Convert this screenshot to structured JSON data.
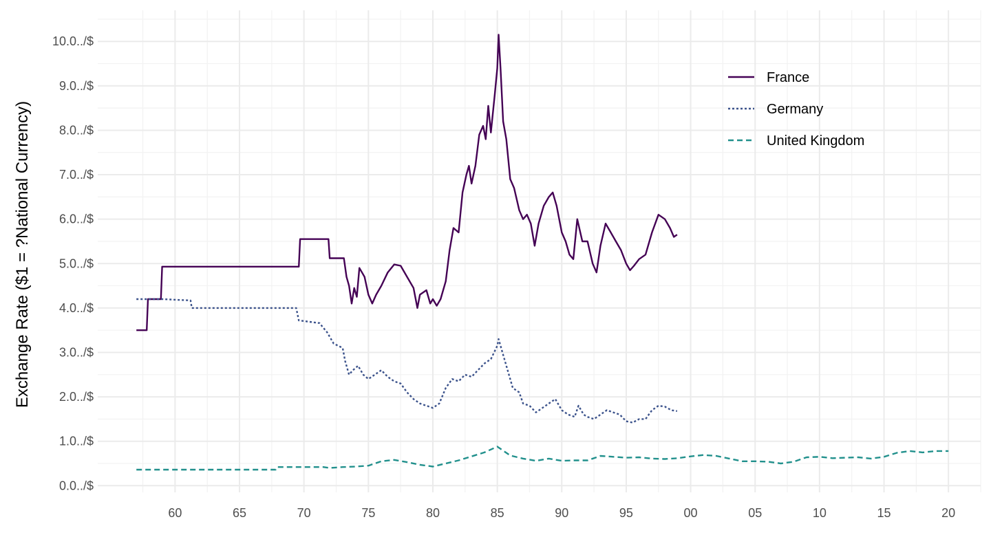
{
  "chart_data": {
    "type": "line",
    "title": "",
    "xlabel": "",
    "ylabel": "Exchange Rate ($1 = ?National Currency)",
    "xlim": [
      1954,
      2022.5
    ],
    "ylim": [
      -0.15,
      10.7
    ],
    "x_ticks": [
      {
        "value": 1960,
        "label": "60"
      },
      {
        "value": 1965,
        "label": "65"
      },
      {
        "value": 1970,
        "label": "70"
      },
      {
        "value": 1975,
        "label": "75"
      },
      {
        "value": 1980,
        "label": "80"
      },
      {
        "value": 1985,
        "label": "85"
      },
      {
        "value": 1990,
        "label": "90"
      },
      {
        "value": 1995,
        "label": "95"
      },
      {
        "value": 2000,
        "label": "00"
      },
      {
        "value": 2005,
        "label": "05"
      },
      {
        "value": 2010,
        "label": "10"
      },
      {
        "value": 2015,
        "label": "15"
      },
      {
        "value": 2020,
        "label": "20"
      }
    ],
    "y_ticks": [
      {
        "value": 0,
        "label": "0.0../$"
      },
      {
        "value": 1,
        "label": "1.0../$"
      },
      {
        "value": 2,
        "label": "2.0../$"
      },
      {
        "value": 3,
        "label": "3.0../$"
      },
      {
        "value": 4,
        "label": "4.0../$"
      },
      {
        "value": 5,
        "label": "5.0../$"
      },
      {
        "value": 6,
        "label": "6.0../$"
      },
      {
        "value": 7,
        "label": "7.0../$"
      },
      {
        "value": 8,
        "label": "8.0../$"
      },
      {
        "value": 9,
        "label": "9.0../$"
      },
      {
        "value": 10,
        "label": "10.0../$"
      }
    ],
    "grid": true,
    "legend_position": "top-right",
    "series": [
      {
        "name": "France",
        "color": "#440154",
        "dash": "solid",
        "points": [
          [
            1957,
            3.5
          ],
          [
            1957.8,
            3.5
          ],
          [
            1957.9,
            4.2
          ],
          [
            1958.9,
            4.2
          ],
          [
            1959,
            4.93
          ],
          [
            1969.6,
            4.93
          ],
          [
            1969.7,
            5.55
          ],
          [
            1971.9,
            5.55
          ],
          [
            1972,
            5.12
          ],
          [
            1973.1,
            5.12
          ],
          [
            1973.3,
            4.7
          ],
          [
            1973.5,
            4.5
          ],
          [
            1973.7,
            4.1
          ],
          [
            1973.9,
            4.45
          ],
          [
            1974.1,
            4.25
          ],
          [
            1974.3,
            4.9
          ],
          [
            1974.5,
            4.8
          ],
          [
            1974.7,
            4.7
          ],
          [
            1975,
            4.3
          ],
          [
            1975.3,
            4.1
          ],
          [
            1975.6,
            4.3
          ],
          [
            1976,
            4.5
          ],
          [
            1976.5,
            4.8
          ],
          [
            1977,
            4.98
          ],
          [
            1977.5,
            4.95
          ],
          [
            1978,
            4.7
          ],
          [
            1978.5,
            4.45
          ],
          [
            1978.8,
            4.0
          ],
          [
            1979,
            4.3
          ],
          [
            1979.5,
            4.4
          ],
          [
            1979.8,
            4.1
          ],
          [
            1980,
            4.2
          ],
          [
            1980.3,
            4.05
          ],
          [
            1980.6,
            4.2
          ],
          [
            1981,
            4.6
          ],
          [
            1981.3,
            5.3
          ],
          [
            1981.6,
            5.8
          ],
          [
            1982,
            5.7
          ],
          [
            1982.3,
            6.6
          ],
          [
            1982.6,
            7.0
          ],
          [
            1982.8,
            7.2
          ],
          [
            1983,
            6.8
          ],
          [
            1983.3,
            7.2
          ],
          [
            1983.6,
            7.9
          ],
          [
            1983.9,
            8.1
          ],
          [
            1984.1,
            7.8
          ],
          [
            1984.3,
            8.55
          ],
          [
            1984.5,
            7.95
          ],
          [
            1984.8,
            8.8
          ],
          [
            1985.0,
            9.4
          ],
          [
            1985.1,
            10.15
          ],
          [
            1985.25,
            9.4
          ],
          [
            1985.45,
            8.2
          ],
          [
            1985.7,
            7.8
          ],
          [
            1986.0,
            6.9
          ],
          [
            1986.3,
            6.7
          ],
          [
            1986.7,
            6.2
          ],
          [
            1987.0,
            6.0
          ],
          [
            1987.3,
            6.1
          ],
          [
            1987.6,
            5.9
          ],
          [
            1987.9,
            5.4
          ],
          [
            1988.2,
            5.9
          ],
          [
            1988.6,
            6.3
          ],
          [
            1989,
            6.5
          ],
          [
            1989.3,
            6.6
          ],
          [
            1989.6,
            6.3
          ],
          [
            1990,
            5.7
          ],
          [
            1990.3,
            5.5
          ],
          [
            1990.6,
            5.2
          ],
          [
            1990.9,
            5.1
          ],
          [
            1991.2,
            6.0
          ],
          [
            1991.6,
            5.5
          ],
          [
            1992,
            5.5
          ],
          [
            1992.4,
            5.0
          ],
          [
            1992.7,
            4.8
          ],
          [
            1993,
            5.4
          ],
          [
            1993.4,
            5.9
          ],
          [
            1993.8,
            5.7
          ],
          [
            1994.2,
            5.5
          ],
          [
            1994.6,
            5.3
          ],
          [
            1995,
            5.0
          ],
          [
            1995.3,
            4.85
          ],
          [
            1995.6,
            4.95
          ],
          [
            1996,
            5.1
          ],
          [
            1996.5,
            5.2
          ],
          [
            1997,
            5.7
          ],
          [
            1997.5,
            6.1
          ],
          [
            1998,
            6.0
          ],
          [
            1998.4,
            5.8
          ],
          [
            1998.7,
            5.6
          ],
          [
            1998.95,
            5.65
          ]
        ]
      },
      {
        "name": "Germany",
        "color": "#3b528b",
        "dash": "dotted",
        "points": [
          [
            1957,
            4.2
          ],
          [
            1959,
            4.2
          ],
          [
            1961.2,
            4.17
          ],
          [
            1961.3,
            4.0
          ],
          [
            1967.5,
            4.0
          ],
          [
            1969.4,
            4.0
          ],
          [
            1969.6,
            3.72
          ],
          [
            1971.2,
            3.66
          ],
          [
            1971.8,
            3.45
          ],
          [
            1972.3,
            3.2
          ],
          [
            1973,
            3.1
          ],
          [
            1973.2,
            2.8
          ],
          [
            1973.5,
            2.5
          ],
          [
            1973.8,
            2.6
          ],
          [
            1974.2,
            2.7
          ],
          [
            1974.6,
            2.5
          ],
          [
            1975,
            2.4
          ],
          [
            1975.5,
            2.5
          ],
          [
            1976,
            2.6
          ],
          [
            1976.5,
            2.45
          ],
          [
            1977,
            2.35
          ],
          [
            1977.5,
            2.3
          ],
          [
            1978,
            2.1
          ],
          [
            1978.5,
            1.95
          ],
          [
            1979,
            1.85
          ],
          [
            1979.5,
            1.8
          ],
          [
            1980,
            1.75
          ],
          [
            1980.5,
            1.85
          ],
          [
            1981,
            2.2
          ],
          [
            1981.5,
            2.4
          ],
          [
            1982,
            2.35
          ],
          [
            1982.5,
            2.5
          ],
          [
            1983,
            2.45
          ],
          [
            1983.5,
            2.6
          ],
          [
            1984,
            2.75
          ],
          [
            1984.5,
            2.85
          ],
          [
            1985.0,
            3.15
          ],
          [
            1985.1,
            3.3
          ],
          [
            1985.4,
            3.0
          ],
          [
            1985.8,
            2.6
          ],
          [
            1986.2,
            2.2
          ],
          [
            1986.7,
            2.1
          ],
          [
            1987,
            1.85
          ],
          [
            1987.5,
            1.8
          ],
          [
            1988,
            1.65
          ],
          [
            1988.5,
            1.75
          ],
          [
            1989,
            1.85
          ],
          [
            1989.5,
            1.95
          ],
          [
            1990,
            1.7
          ],
          [
            1990.5,
            1.6
          ],
          [
            1991,
            1.55
          ],
          [
            1991.3,
            1.8
          ],
          [
            1991.7,
            1.6
          ],
          [
            1992,
            1.55
          ],
          [
            1992.5,
            1.5
          ],
          [
            1993,
            1.6
          ],
          [
            1993.5,
            1.7
          ],
          [
            1994,
            1.65
          ],
          [
            1994.5,
            1.6
          ],
          [
            1995,
            1.45
          ],
          [
            1995.5,
            1.42
          ],
          [
            1996,
            1.5
          ],
          [
            1996.5,
            1.5
          ],
          [
            1997,
            1.7
          ],
          [
            1997.5,
            1.8
          ],
          [
            1998,
            1.78
          ],
          [
            1998.5,
            1.7
          ],
          [
            1998.95,
            1.68
          ]
        ]
      },
      {
        "name": "United Kingdom",
        "color": "#21908c",
        "dash": "dashed",
        "points": [
          [
            1957,
            0.36
          ],
          [
            1967.8,
            0.36
          ],
          [
            1967.9,
            0.42
          ],
          [
            1971.5,
            0.42
          ],
          [
            1972,
            0.4
          ],
          [
            1973,
            0.42
          ],
          [
            1974,
            0.43
          ],
          [
            1975,
            0.45
          ],
          [
            1976,
            0.55
          ],
          [
            1977,
            0.58
          ],
          [
            1978,
            0.53
          ],
          [
            1979,
            0.47
          ],
          [
            1980,
            0.43
          ],
          [
            1981,
            0.5
          ],
          [
            1982,
            0.57
          ],
          [
            1983,
            0.66
          ],
          [
            1984,
            0.75
          ],
          [
            1985,
            0.88
          ],
          [
            1986,
            0.68
          ],
          [
            1987,
            0.61
          ],
          [
            1988,
            0.56
          ],
          [
            1989,
            0.61
          ],
          [
            1990,
            0.56
          ],
          [
            1991,
            0.57
          ],
          [
            1992,
            0.57
          ],
          [
            1993,
            0.67
          ],
          [
            1994,
            0.65
          ],
          [
            1995,
            0.63
          ],
          [
            1996,
            0.64
          ],
          [
            1997,
            0.61
          ],
          [
            1998,
            0.6
          ],
          [
            1999,
            0.62
          ],
          [
            2000,
            0.66
          ],
          [
            2001,
            0.69
          ],
          [
            2002,
            0.67
          ],
          [
            2003,
            0.61
          ],
          [
            2004,
            0.55
          ],
          [
            2005,
            0.55
          ],
          [
            2006,
            0.54
          ],
          [
            2007,
            0.5
          ],
          [
            2008,
            0.54
          ],
          [
            2009,
            0.64
          ],
          [
            2010,
            0.65
          ],
          [
            2011,
            0.62
          ],
          [
            2012,
            0.63
          ],
          [
            2013,
            0.64
          ],
          [
            2014,
            0.61
          ],
          [
            2015,
            0.65
          ],
          [
            2016,
            0.74
          ],
          [
            2017,
            0.78
          ],
          [
            2018,
            0.75
          ],
          [
            2019,
            0.78
          ],
          [
            2020,
            0.78
          ]
        ]
      }
    ]
  }
}
